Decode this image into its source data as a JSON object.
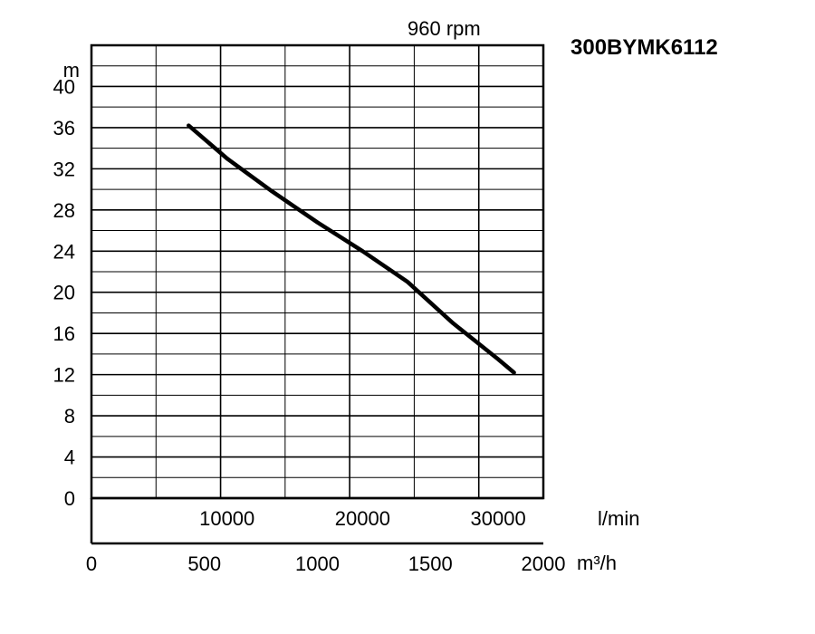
{
  "chart_data": {
    "type": "line",
    "title": "300BYMK6112",
    "subtitle": "960 rpm",
    "ylabel": "m",
    "ylim": [
      0,
      44
    ],
    "yticks": [
      0,
      4,
      8,
      12,
      16,
      20,
      24,
      28,
      32,
      36,
      40
    ],
    "xlabel_lmin": "l/min",
    "xticks_lmin": [
      10000,
      20000,
      30000
    ],
    "xlabel_m3h": "m³/h",
    "xticks_m3h": [
      0,
      500,
      1000,
      1500,
      2000
    ],
    "xlim_m3h": [
      0,
      2000
    ],
    "grid": true,
    "series": [
      {
        "x": [
          430,
          600,
          800,
          1000,
          1200,
          1400,
          1600,
          1800,
          1870
        ],
        "y": [
          36.2,
          33.0,
          29.8,
          26.8,
          24.0,
          21.0,
          17.0,
          13.5,
          12.2
        ],
        "color": "#000000"
      }
    ]
  }
}
